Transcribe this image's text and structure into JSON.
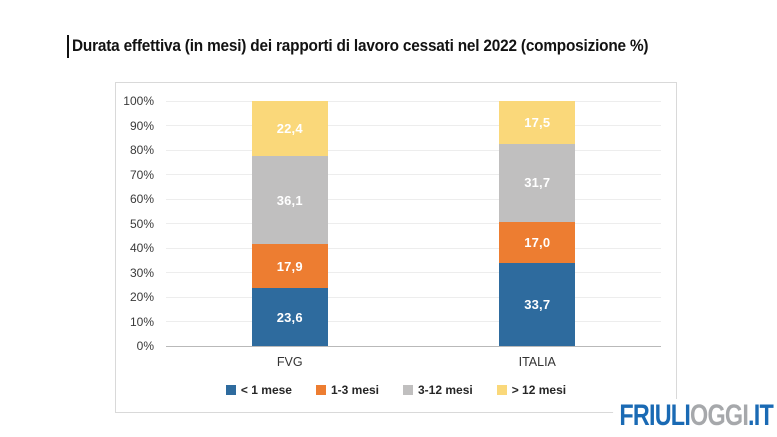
{
  "title": "Durata effettiva (in mesi) dei rapporti di lavoro cessati nel 2022 (composizione %)",
  "logo": {
    "friuli": "FRIULI",
    "oggi": "OGGI",
    "it": ".IT",
    "blue": "#1a6ab4",
    "gray": "#a6a8ab"
  },
  "chart_data": {
    "type": "bar",
    "stacked": true,
    "title": "Durata effettiva (in mesi) dei rapporti di lavoro cessati nel 2022 (composizione %)",
    "categories": [
      "FVG",
      "ITALIA"
    ],
    "series": [
      {
        "name": "< 1 mese",
        "color": "#2E6B9E",
        "values": [
          23.6,
          33.7
        ]
      },
      {
        "name": "1-3 mesi",
        "color": "#ED7D31",
        "values": [
          17.9,
          17.0
        ]
      },
      {
        "name": "3-12 mesi",
        "color": "#C0BFBF",
        "values": [
          36.1,
          31.7
        ]
      },
      {
        "name": "> 12 mesi",
        "color": "#FAD87A",
        "values": [
          22.4,
          17.5
        ]
      }
    ],
    "ylim": [
      0,
      100
    ],
    "y_ticks": [
      "0%",
      "10%",
      "20%",
      "30%",
      "40%",
      "50%",
      "60%",
      "70%",
      "80%",
      "90%",
      "100%"
    ],
    "xlabel": "",
    "ylabel": "",
    "grid": true,
    "legend_position": "bottom",
    "value_label_decimal_separator": ","
  }
}
